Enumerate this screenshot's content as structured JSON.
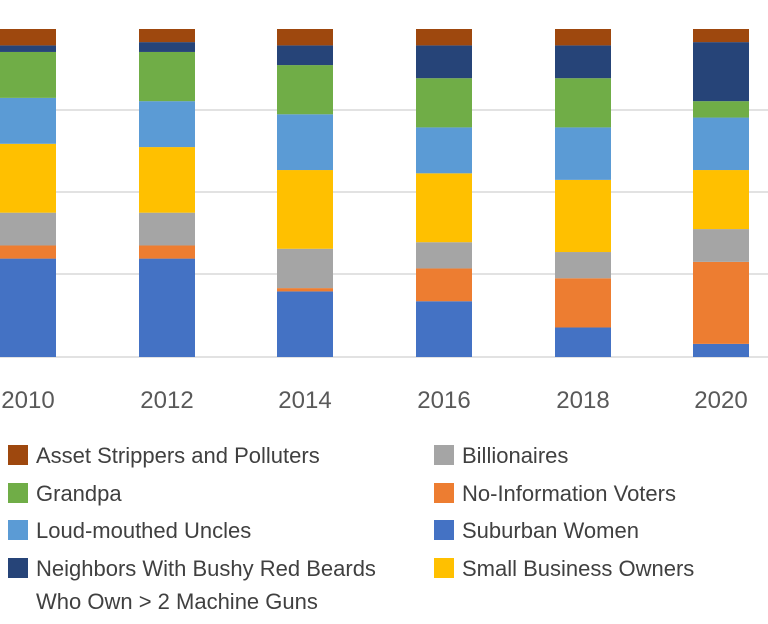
{
  "chart_data": {
    "type": "bar",
    "stacked": true,
    "percent_stacked": true,
    "categories": [
      "2010",
      "2012",
      "2014",
      "2016",
      "2018",
      "2020"
    ],
    "series": [
      {
        "name": "Suburban Women",
        "color": "#4472C4",
        "values": [
          30,
          30,
          20,
          17,
          9,
          4
        ]
      },
      {
        "name": "No-Information Voters",
        "color": "#ED7D31",
        "values": [
          4,
          4,
          1,
          10,
          15,
          25
        ]
      },
      {
        "name": "Billionaires",
        "color": "#A5A5A5",
        "values": [
          10,
          10,
          12,
          8,
          8,
          10
        ]
      },
      {
        "name": "Small Business Owners",
        "color": "#FFC000",
        "values": [
          21,
          20,
          24,
          21,
          22,
          18
        ]
      },
      {
        "name": "Loud-mouthed Uncles",
        "color": "#5B9BD5",
        "values": [
          14,
          14,
          17,
          14,
          16,
          16
        ]
      },
      {
        "name": "Grandpa",
        "color": "#70AD47",
        "values": [
          14,
          15,
          15,
          15,
          15,
          5
        ]
      },
      {
        "name": "Neighbors With Bushy Red Beards Who Own > 2 Machine Guns",
        "color": "#264478",
        "values": [
          2,
          3,
          6,
          10,
          10,
          18
        ]
      },
      {
        "name": "Asset Strippers and Polluters",
        "color": "#9E480E",
        "values": [
          5,
          4,
          5,
          5,
          5,
          4
        ]
      }
    ],
    "gridlines": true,
    "legend": {
      "placement": "bottom",
      "entries": [
        {
          "label": "Asset Strippers and Polluters",
          "color": "#9E480E"
        },
        {
          "label": "Billionaires",
          "color": "#A5A5A5"
        },
        {
          "label": "Grandpa",
          "color": "#70AD47"
        },
        {
          "label": "No-Information Voters",
          "color": "#ED7D31",
          "text_color": "#E02020"
        },
        {
          "label": "Loud-mouthed Uncles",
          "color": "#5B9BD5"
        },
        {
          "label": "Suburban Women",
          "color": "#4472C4"
        },
        {
          "label": "Neighbors With Bushy Red Beards",
          "label_line2": "Who Own > 2 Machine Guns",
          "color": "#264478"
        },
        {
          "label": "Small Business Owners",
          "color": "#FFC000"
        }
      ]
    }
  }
}
